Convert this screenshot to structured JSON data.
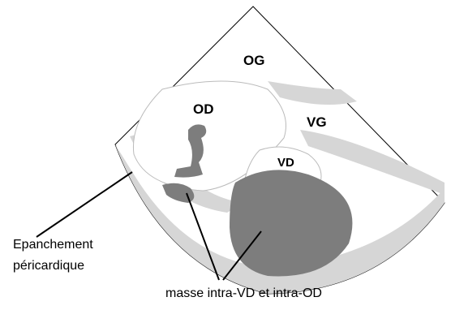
{
  "labels": {
    "og": "OG",
    "od": "OD",
    "vg": "VG",
    "vd": "VD"
  },
  "annotations": {
    "effusion_line1": "Epanchement",
    "effusion_line2": "péricardique",
    "mass": "masse intra-VD et intra-OD"
  }
}
